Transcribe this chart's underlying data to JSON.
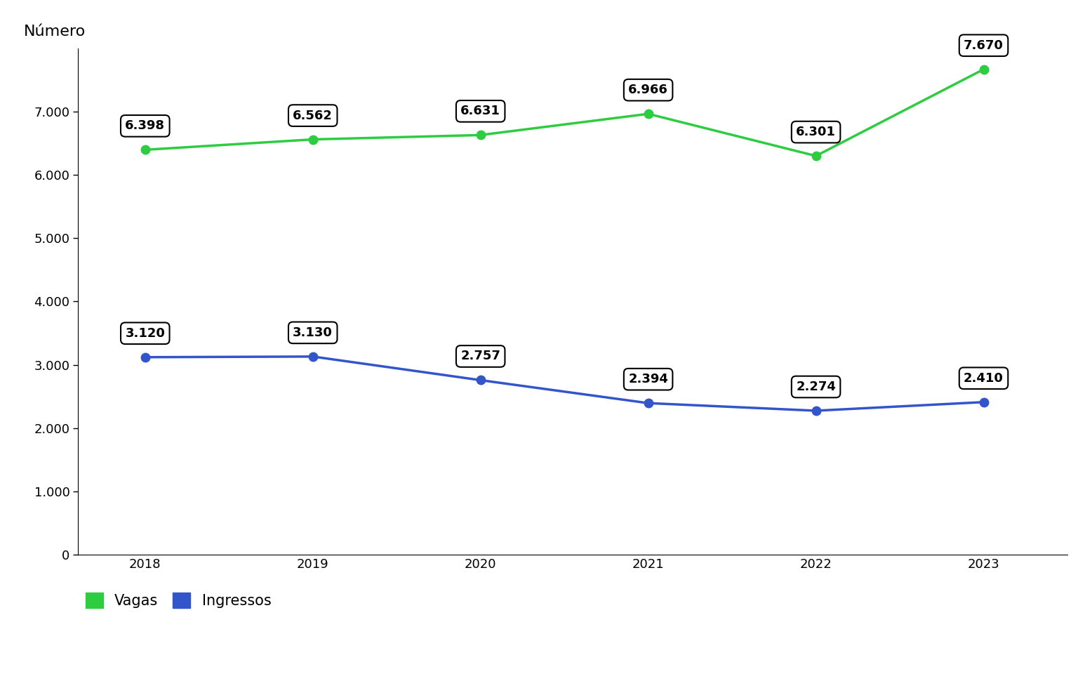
{
  "years": [
    2018,
    2019,
    2020,
    2021,
    2022,
    2023
  ],
  "vagas": [
    6398,
    6562,
    6631,
    6966,
    6301,
    7670
  ],
  "ingressos": [
    3120,
    3130,
    2757,
    2394,
    2274,
    2410
  ],
  "vagas_color": "#2ecc40",
  "ingressos_color": "#3355cc",
  "background_color": "#ffffff",
  "ylabel": "Número",
  "ylim": [
    0,
    8000
  ],
  "yticks": [
    0,
    1000,
    2000,
    3000,
    4000,
    5000,
    6000,
    7000
  ],
  "ytick_labels": [
    "0",
    "1.000",
    "2.000",
    "3.000",
    "4.000",
    "5.000",
    "6.000",
    "7.000"
  ],
  "legend_vagas": "Vagas",
  "legend_ingressos": "Ingressos",
  "vagas_labels": [
    "6.398",
    "6.562",
    "6.631",
    "6.966",
    "6.301",
    "7.670"
  ],
  "ingressos_labels": [
    "3.120",
    "3.130",
    "2.757",
    "2.394",
    "2.274",
    "2.410"
  ],
  "marker_size": 9,
  "linewidth": 2.5,
  "annotation_fontsize": 13,
  "tick_fontsize": 13,
  "ylabel_fontsize": 16,
  "legend_fontsize": 15
}
